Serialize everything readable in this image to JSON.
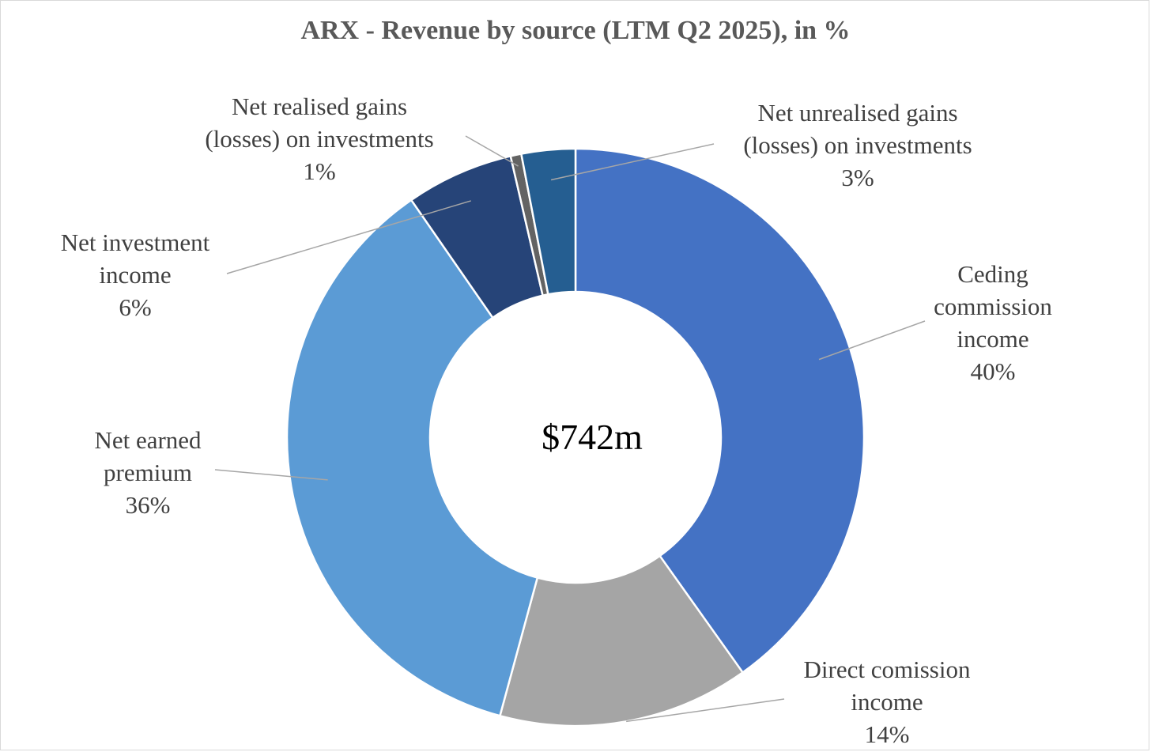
{
  "chart_data": {
    "type": "pie",
    "style": "donut",
    "title": "ARX - Revenue by source (LTM Q2 2025), in %",
    "center_label": "$742m",
    "slices": [
      {
        "name": "Ceding commission income",
        "label_lines": [
          "Ceding",
          "commission",
          "income",
          "40%"
        ],
        "value": 40,
        "color": "#4472C4"
      },
      {
        "name": "Direct comission income",
        "label_lines": [
          "Direct comission",
          "income",
          "14%"
        ],
        "value": 14,
        "color": "#A5A5A5"
      },
      {
        "name": "Net earned premium",
        "label_lines": [
          "Net earned",
          "premium",
          "36%"
        ],
        "value": 36,
        "color": "#5B9BD5"
      },
      {
        "name": "Net investment income",
        "label_lines": [
          "Net investment",
          "income",
          "6%"
        ],
        "value": 6,
        "color": "#264478"
      },
      {
        "name": "Net realised gains (losses) on investments",
        "label_lines": [
          "Net realised gains",
          "(losses) on investments",
          "1%"
        ],
        "value": 0.6,
        "color": "#636363"
      },
      {
        "name": "Net unrealised gains (losses) on investments",
        "label_lines": [
          "Net unrealised gains",
          "(losses) on investments",
          "3%"
        ],
        "value": 3,
        "color": "#255E91"
      }
    ],
    "legend": "none"
  }
}
